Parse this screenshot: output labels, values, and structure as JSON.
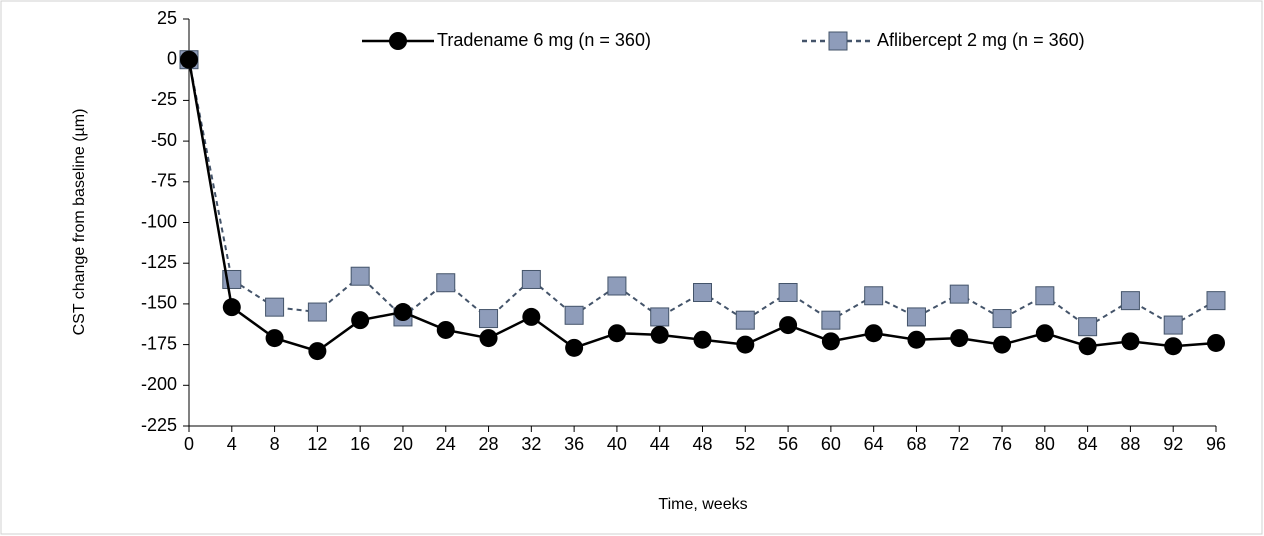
{
  "chart_data": {
    "type": "line",
    "x_label": "Time, weeks",
    "y_label": "CST change from baseline (µm)",
    "x": [
      0,
      4,
      8,
      12,
      16,
      20,
      24,
      28,
      32,
      36,
      40,
      44,
      48,
      52,
      56,
      60,
      64,
      68,
      72,
      76,
      80,
      84,
      88,
      92,
      96
    ],
    "xlim": [
      0,
      96
    ],
    "xticks": [
      0,
      4,
      8,
      12,
      16,
      20,
      24,
      28,
      32,
      36,
      40,
      44,
      48,
      52,
      56,
      60,
      64,
      68,
      72,
      76,
      80,
      84,
      88,
      92,
      96
    ],
    "ylim": [
      -225,
      25
    ],
    "yticks": [
      -225,
      -200,
      -175,
      -150,
      -125,
      -100,
      -75,
      -50,
      -25,
      0,
      25
    ],
    "legend": "top",
    "series": [
      {
        "name": "Tradename 6 mg (n = 360)",
        "color": "#000000",
        "marker": "circle",
        "line_style": "solid",
        "values": [
          0,
          -152,
          -171,
          -179,
          -160,
          -155,
          -166,
          -171,
          -158,
          -177,
          -168,
          -169,
          -172,
          -175,
          -163,
          -173,
          -168,
          -172,
          -171,
          -175,
          -168,
          -176,
          -173,
          -176,
          -174
        ]
      },
      {
        "name": "Aflibercept 2 mg (n = 360)",
        "color": "#44546a",
        "marker": "square",
        "line_style": "dashed",
        "values": [
          0,
          -135,
          -152,
          -155,
          -133,
          -158,
          -137,
          -159,
          -135,
          -157,
          -139,
          -158,
          -143,
          -160,
          -143,
          -160,
          -145,
          -158,
          -144,
          -159,
          -145,
          -164,
          -148,
          -163,
          -148
        ]
      }
    ]
  }
}
